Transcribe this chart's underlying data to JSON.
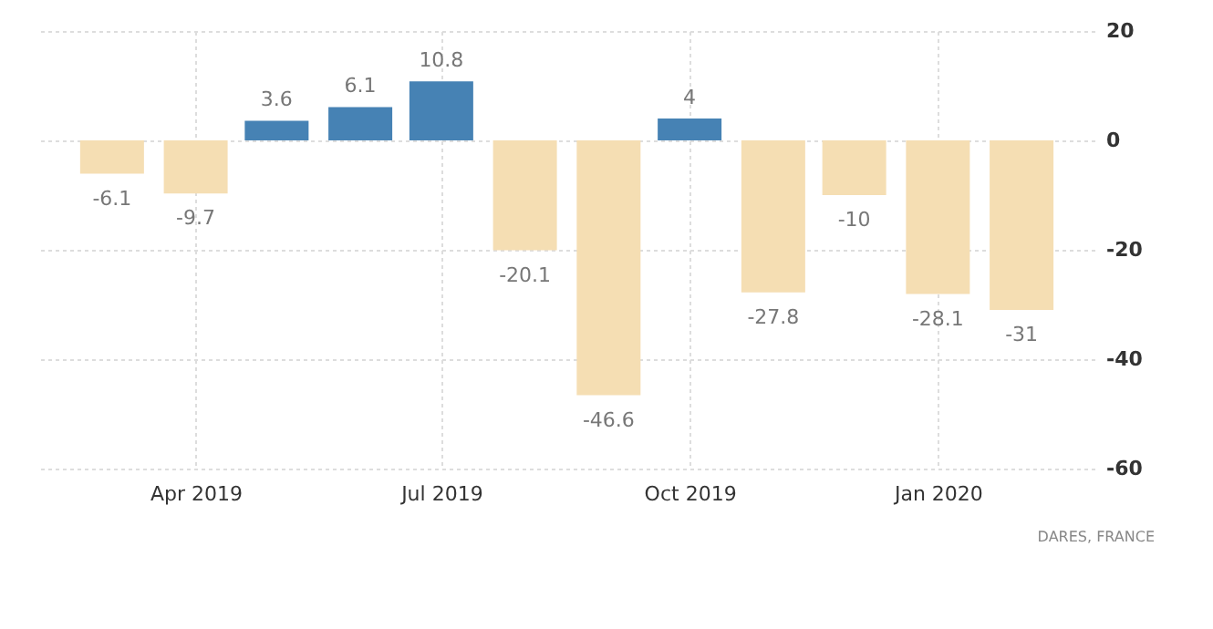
{
  "chart_data": {
    "type": "bar",
    "x": [
      "2019-03-01",
      "2019-04-01",
      "2019-05-01",
      "2019-06-01",
      "2019-07-01",
      "2019-08-01",
      "2019-09-01",
      "2019-10-01",
      "2019-11-01",
      "2019-12-01",
      "2020-01-01",
      "2020-02-01"
    ],
    "values": [
      -6.1,
      -9.7,
      3.6,
      6.1,
      10.8,
      -20.1,
      -46.6,
      4,
      -27.8,
      -10,
      -28.1,
      -31
    ],
    "colors": [
      "#f5deb3",
      "#f5deb3",
      "#4682b4",
      "#4682b4",
      "#4682b4",
      "#f5deb3",
      "#f5deb3",
      "#4682b4",
      "#f5deb3",
      "#f5deb3",
      "#f5deb3",
      "#f5deb3"
    ],
    "xlim": [
      "2019-02-01",
      "2020-02-28"
    ],
    "xticks": [
      {
        "value": "2019-04-01",
        "label": "Apr 2019"
      },
      {
        "value": "2019-07-01",
        "label": "Jul 2019"
      },
      {
        "value": "2019-10-01",
        "label": "Oct 2019"
      },
      {
        "value": "2020-01-01",
        "label": "Jan 2020"
      }
    ],
    "ylim": [
      -60,
      20
    ],
    "yticks": [
      20,
      0,
      -20,
      -40,
      -60
    ],
    "grid": true,
    "data_labels": true,
    "annotations": [
      "DARES, FRANCE"
    ]
  }
}
